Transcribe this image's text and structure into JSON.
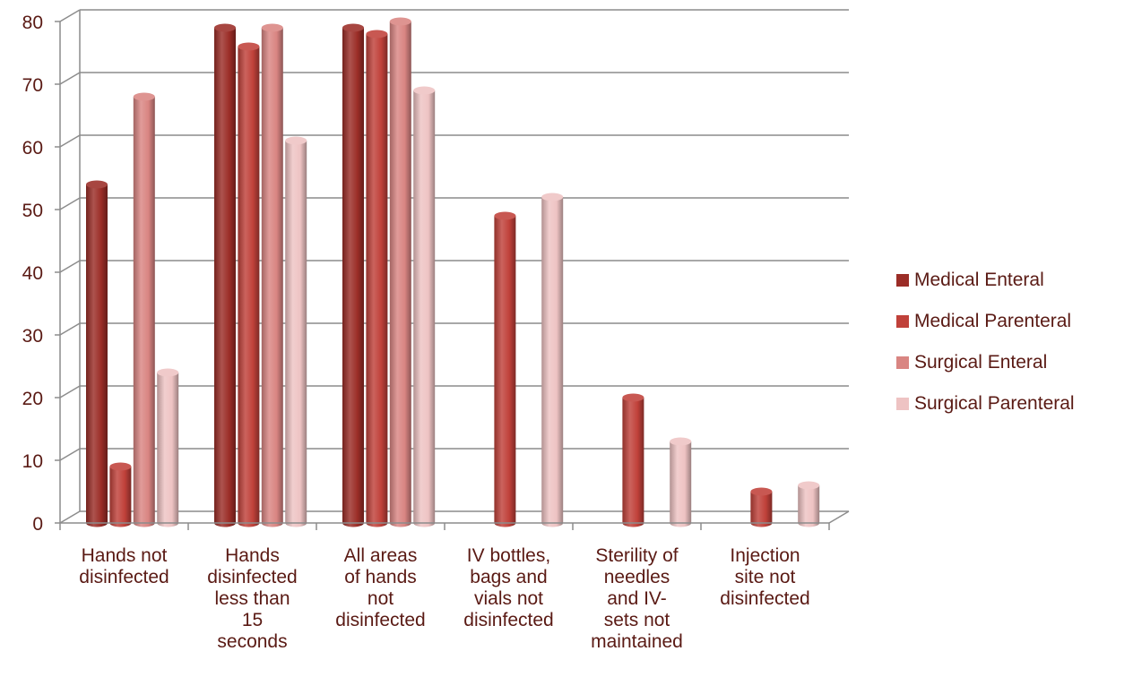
{
  "chart_data": {
    "type": "bar",
    "title": "",
    "xlabel": "",
    "ylabel": "",
    "ylim": [
      0,
      80
    ],
    "yticks": [
      "0",
      "10",
      "20",
      "30",
      "40",
      "50",
      "60",
      "70",
      "80"
    ],
    "categories": [
      [
        "Hands not",
        "disinfected"
      ],
      [
        "Hands",
        "disinfected",
        "less than",
        "15",
        "seconds"
      ],
      [
        "All areas",
        "of hands",
        "not",
        "disinfected"
      ],
      [
        "IV bottles,",
        "bags and",
        "vials not",
        "disinfected"
      ],
      [
        "Sterility of",
        "needles",
        "and IV-",
        "sets not",
        "maintained"
      ],
      [
        "Injection",
        "site not",
        "disinfected"
      ]
    ],
    "series": [
      {
        "name": "Medical Enteral",
        "color": "#9b2d27",
        "values": [
          54,
          79,
          79,
          null,
          null,
          null
        ]
      },
      {
        "name": "Medical Parenteral",
        "color": "#c0413a",
        "values": [
          9,
          76,
          78,
          49,
          20,
          5
        ]
      },
      {
        "name": "Surgical Enteral",
        "color": "#d98582",
        "values": [
          68,
          79,
          80,
          null,
          null,
          null
        ]
      },
      {
        "name": "Surgical Parenteral",
        "color": "#eec3c3",
        "values": [
          24,
          61,
          69,
          52,
          13,
          6
        ]
      }
    ],
    "grid": true,
    "legend": "right"
  }
}
